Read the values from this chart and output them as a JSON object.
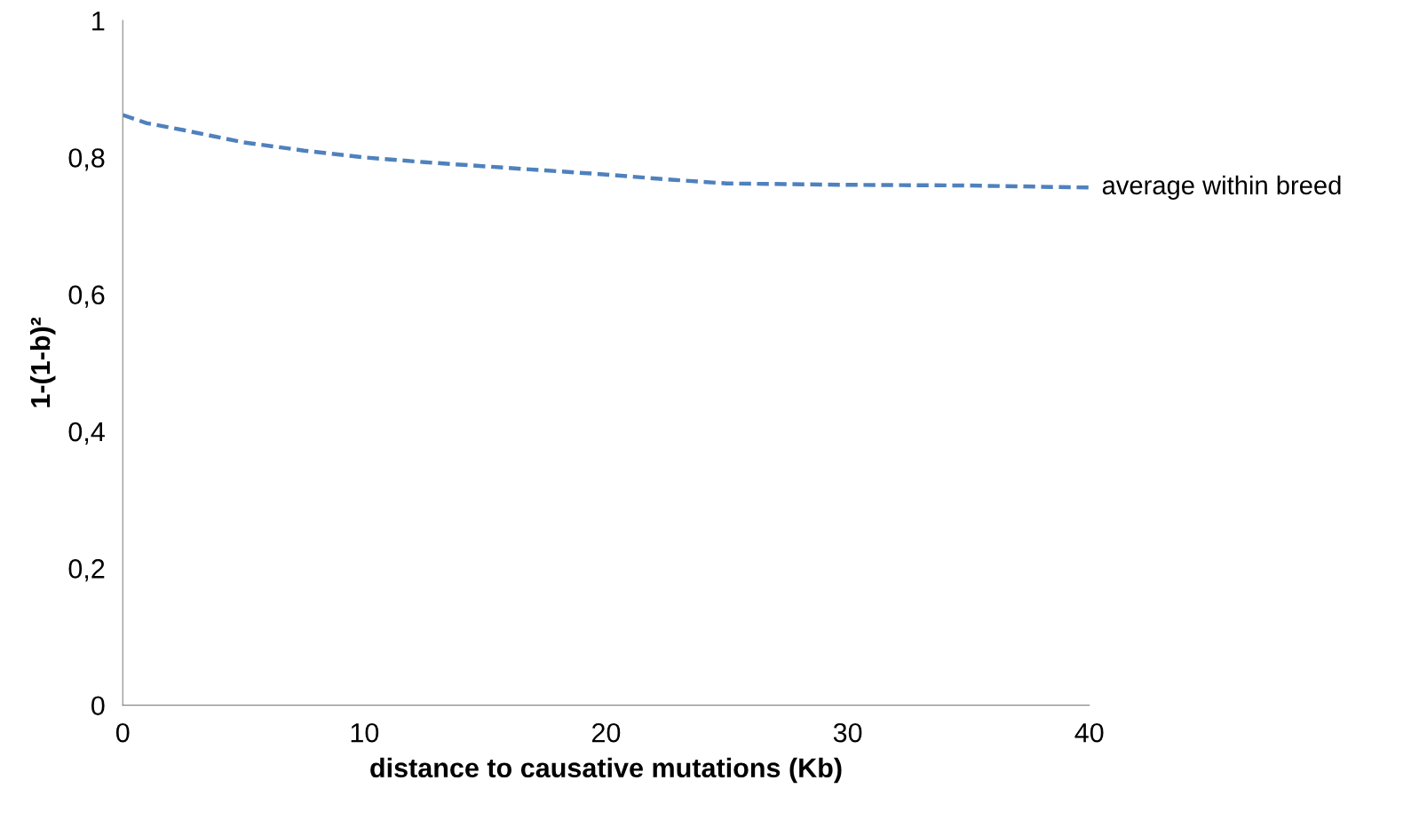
{
  "chart_data": {
    "type": "line",
    "xlabel": "distance to causative mutations (Kb)",
    "ylabel": "1-(1-b)²",
    "x": [
      0,
      1,
      2.5,
      5,
      7.5,
      10,
      12.5,
      15,
      17.5,
      20,
      22.5,
      25,
      27.5,
      30,
      35,
      40
    ],
    "series": [
      {
        "name": "average within breed",
        "color": "#4f81bd",
        "values": [
          0.862,
          0.85,
          0.84,
          0.822,
          0.81,
          0.8,
          0.793,
          0.787,
          0.781,
          0.775,
          0.768,
          0.762,
          0.761,
          0.76,
          0.759,
          0.756
        ]
      }
    ],
    "xlim": [
      0,
      40
    ],
    "xticks": [
      0,
      10,
      20,
      30,
      40
    ],
    "ylim": [
      0,
      1
    ],
    "yticks": [
      0,
      {
        "value": 0.2,
        "label": "0,2"
      },
      {
        "value": 0.4,
        "label": "0,4"
      },
      {
        "value": 0.6,
        "label": "0,6"
      },
      {
        "value": 0.8,
        "label": "0,8"
      },
      1
    ],
    "grid": false,
    "legend": false,
    "marker": "none",
    "line_style": "dashed"
  }
}
